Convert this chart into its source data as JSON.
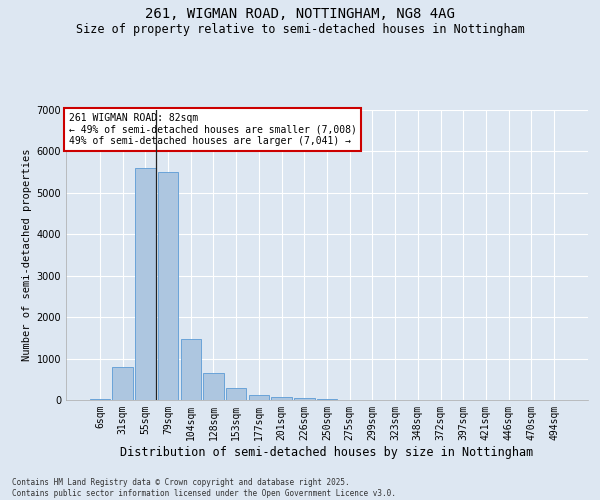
{
  "title": "261, WIGMAN ROAD, NOTTINGHAM, NG8 4AG",
  "subtitle": "Size of property relative to semi-detached houses in Nottingham",
  "xlabel": "Distribution of semi-detached houses by size in Nottingham",
  "ylabel": "Number of semi-detached properties",
  "categories": [
    "6sqm",
    "31sqm",
    "55sqm",
    "79sqm",
    "104sqm",
    "128sqm",
    "153sqm",
    "177sqm",
    "201sqm",
    "226sqm",
    "250sqm",
    "275sqm",
    "299sqm",
    "323sqm",
    "348sqm",
    "372sqm",
    "397sqm",
    "421sqm",
    "446sqm",
    "470sqm",
    "494sqm"
  ],
  "values": [
    30,
    800,
    5600,
    5500,
    1480,
    650,
    280,
    130,
    80,
    50,
    30,
    5,
    3,
    2,
    1,
    1,
    1,
    0,
    0,
    0,
    0
  ],
  "bar_color": "#adc6e0",
  "bar_edge_color": "#5b9bd5",
  "annotation_text": "261 WIGMAN ROAD: 82sqm\n← 49% of semi-detached houses are smaller (7,008)\n49% of semi-detached houses are larger (7,041) →",
  "annotation_box_color": "#ffffff",
  "annotation_box_edge_color": "#cc0000",
  "vline_bar_index": 2,
  "ylim": [
    0,
    7000
  ],
  "yticks": [
    0,
    1000,
    2000,
    3000,
    4000,
    5000,
    6000,
    7000
  ],
  "background_color": "#dde7f2",
  "plot_background_color": "#dde7f2",
  "grid_color": "#ffffff",
  "footer_text": "Contains HM Land Registry data © Crown copyright and database right 2025.\nContains public sector information licensed under the Open Government Licence v3.0.",
  "title_fontsize": 10,
  "subtitle_fontsize": 8.5,
  "xlabel_fontsize": 8.5,
  "ylabel_fontsize": 7.5,
  "tick_fontsize": 7,
  "annotation_fontsize": 7,
  "footer_fontsize": 5.5
}
